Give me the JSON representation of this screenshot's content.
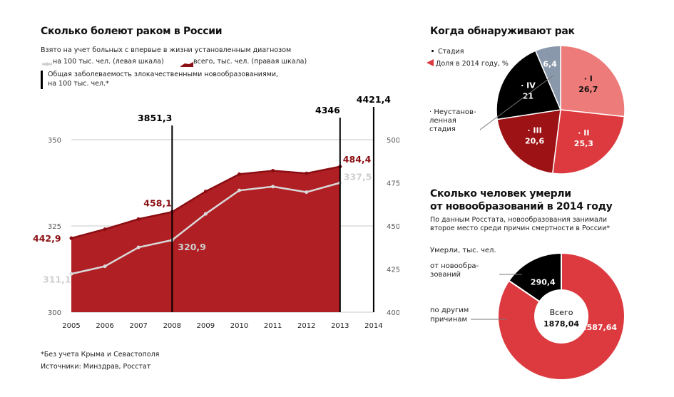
{
  "left": {
    "title": "Сколько болеют раком в России",
    "subtitle": "Взято на учет больных с впервые в жизни установленным диагнозом",
    "legend_light": "на 100 тыс. чел. (левая шкала)",
    "legend_dark": "всего, тыс. чел. (правая шкала)",
    "legend_bar_line1": "Общая заболеваемость злокачественными новообразованиями,",
    "legend_bar_line2": "на 100 тыс. чел.*"
  },
  "right_top": {
    "title": "Когда обнаруживают рак",
    "legend_stage": "Стадия",
    "legend_share": "Доля в 2014 году, %"
  },
  "right_bottom": {
    "title_line1": "Сколько человек умерли",
    "title_line2": "от новообразований в 2014 году",
    "note_line1": "По данным Росстата, новообразования занимали",
    "note_line2": "второе место среди причин смертности в России*",
    "unit": "Умерли, тыс. чел.",
    "label_neo_line1": "от новообра-",
    "label_neo_line2": "зований",
    "label_other_line1": "по другим",
    "label_other_line2": "причинам",
    "center_label": "Всего",
    "center_value": "1878,04"
  },
  "footer": {
    "footnote": "*Без учета Крыма и Севастополя",
    "sources": "Источники: Минздрав, Росстат"
  },
  "chart_data": [
    {
      "type": "area",
      "x": [
        "2005",
        "2006",
        "2007",
        "2008",
        "2009",
        "2010",
        "2011",
        "2012",
        "2013",
        "2014"
      ],
      "left_axis": {
        "ticks": [
          "300",
          "325",
          "350"
        ],
        "ylim": [
          300,
          350
        ]
      },
      "right_axis": {
        "ticks": [
          "400",
          "425",
          "450",
          "475",
          "500"
        ],
        "ylim": [
          400,
          500
        ]
      },
      "series": [
        {
          "name": "всего, тыс. чел. (правая шкала)",
          "axis": "right",
          "color": "#b01f24",
          "values": [
            442.9,
            448.1,
            454,
            458.1,
            470,
            480,
            482,
            480.5,
            484.4,
            null
          ],
          "labels": {
            "0": "442,9",
            "3": "458,1",
            "8": "484,4"
          }
        },
        {
          "name": "на 100 тыс. чел. (левая шкала)",
          "axis": "left",
          "color": "#d9d9d9",
          "values": [
            311.1,
            313.3,
            318.8,
            320.9,
            328.5,
            335.3,
            336.4,
            334.8,
            337.5,
            null
          ],
          "labels": {
            "0": "311,1",
            "3": "320,9",
            "8": "337,5"
          }
        }
      ],
      "bars": [
        {
          "year": "2008",
          "label": "3851,3"
        },
        {
          "year": "2013",
          "label": "4346"
        },
        {
          "year": "2014",
          "label": "4421,4"
        }
      ]
    },
    {
      "type": "pie",
      "title": "Когда обнаруживают рак",
      "slices": [
        {
          "label": "I",
          "value": 26.7,
          "display": "26,7",
          "color": "#ec7b79"
        },
        {
          "label": "II",
          "value": 25.3,
          "display": "25,3",
          "color": "#dc3a3f"
        },
        {
          "label": "III",
          "value": 20.6,
          "display": "20,6",
          "color": "#9c1215"
        },
        {
          "label": "IV",
          "value": 21,
          "display": "21",
          "color": "#000000"
        },
        {
          "label": "Неустановленная стадия",
          "value": 6.4,
          "display": "6,4",
          "color": "#8a98ab"
        }
      ],
      "callout_lines": [
        "Неустанов-",
        "ленная",
        "стадия"
      ]
    },
    {
      "type": "pie",
      "title": "Сколько человек умерли от новообразований в 2014 году",
      "slices": [
        {
          "label": "от новообразований",
          "value": 290.4,
          "display": "290,4",
          "color": "#000000"
        },
        {
          "label": "по другим причинам",
          "value": 1587.64,
          "display": "1587,64",
          "color": "#dc3a3f"
        }
      ]
    }
  ]
}
